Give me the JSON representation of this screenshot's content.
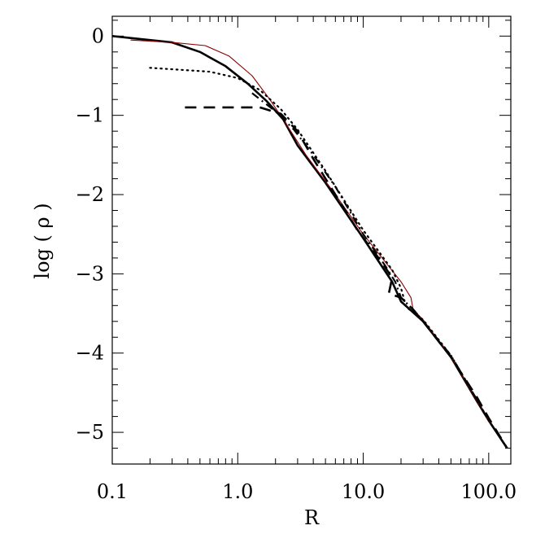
{
  "chart_data": {
    "type": "line",
    "title": "",
    "xlabel": "R",
    "ylabel": "log ( ρ )",
    "xscale": "log",
    "xlim": [
      0.1,
      150
    ],
    "ylim": [
      -5.4,
      0.25
    ],
    "x_ticks": [
      {
        "value": 0.1,
        "label": "0.1"
      },
      {
        "value": 1.0,
        "label": "1.0"
      },
      {
        "value": 10.0,
        "label": "10.0"
      },
      {
        "value": 100.0,
        "label": "100.0"
      }
    ],
    "y_ticks": [
      {
        "value": 0,
        "label": "0"
      },
      {
        "value": -1,
        "label": "−1"
      },
      {
        "value": -2,
        "label": "−2"
      },
      {
        "value": -3,
        "label": "−3"
      },
      {
        "value": -4,
        "label": "−4"
      },
      {
        "value": -5,
        "label": "−5"
      }
    ],
    "grid": false,
    "series": [
      {
        "style": "solid-thick",
        "color": "#000000",
        "x": [
          0.1,
          0.3,
          0.5,
          0.8,
          1.2,
          1.7,
          2.3,
          3.0,
          5.0,
          10.0,
          17.0,
          20.0,
          30.0,
          50.0,
          80.0,
          100.0,
          140.0
        ],
        "y": [
          0.0,
          -0.08,
          -0.2,
          -0.38,
          -0.6,
          -0.82,
          -1.05,
          -1.38,
          -1.85,
          -2.55,
          -3.1,
          -3.35,
          -3.6,
          -4.05,
          -4.6,
          -4.85,
          -5.2
        ]
      },
      {
        "style": "solid-thin",
        "color": "#8b0000",
        "x": [
          0.14,
          0.3,
          0.55,
          0.85,
          1.3,
          1.8,
          2.3,
          3.5,
          6.0,
          10.0,
          15.0,
          20.0,
          24.0,
          25.0,
          30.0,
          50.0,
          80.0,
          100.0,
          140.0
        ],
        "y": [
          -0.05,
          -0.08,
          -0.12,
          -0.25,
          -0.5,
          -0.8,
          -1.05,
          -1.5,
          -2.0,
          -2.5,
          -2.85,
          -3.1,
          -3.3,
          -3.45,
          -3.58,
          -4.05,
          -4.6,
          -4.85,
          -5.2
        ]
      },
      {
        "style": "dotted",
        "color": "#000000",
        "x": [
          0.2,
          0.6,
          1.0,
          1.5,
          2.2,
          3.0,
          5.0,
          10.0,
          17.0,
          20.0,
          22.0,
          30.0,
          50.0,
          80.0,
          100.0,
          140.0
        ],
        "y": [
          -0.4,
          -0.45,
          -0.53,
          -0.68,
          -0.92,
          -1.18,
          -1.7,
          -2.45,
          -2.95,
          -3.18,
          -3.42,
          -3.58,
          -4.03,
          -4.58,
          -4.85,
          -5.2
        ]
      },
      {
        "style": "dashed",
        "color": "#000000",
        "x": [
          0.38,
          1.0,
          1.5,
          2.2,
          3.0,
          4.0,
          6.0,
          9.0,
          14.0,
          17.0,
          16.0,
          20.0,
          25.0,
          30.0,
          50.0,
          80.0,
          100.0,
          140.0
        ],
        "y": [
          -0.9,
          -0.9,
          -0.9,
          -0.98,
          -1.2,
          -1.55,
          -2.0,
          -2.45,
          -2.85,
          -3.05,
          -3.25,
          -3.3,
          -3.45,
          -3.6,
          -4.05,
          -4.55,
          -4.82,
          -5.2
        ]
      },
      {
        "style": "dash-dot",
        "color": "#000000",
        "x": [
          1.3,
          2.0,
          2.8,
          4.0,
          6.0,
          10.0,
          15.0,
          18.0,
          20.0,
          25.0,
          30.0,
          50.0,
          80.0,
          100.0,
          140.0
        ],
        "y": [
          -0.72,
          -0.95,
          -1.18,
          -1.5,
          -1.9,
          -2.5,
          -2.9,
          -3.1,
          -3.3,
          -3.45,
          -3.6,
          -4.03,
          -4.58,
          -4.85,
          -5.2
        ]
      }
    ]
  }
}
